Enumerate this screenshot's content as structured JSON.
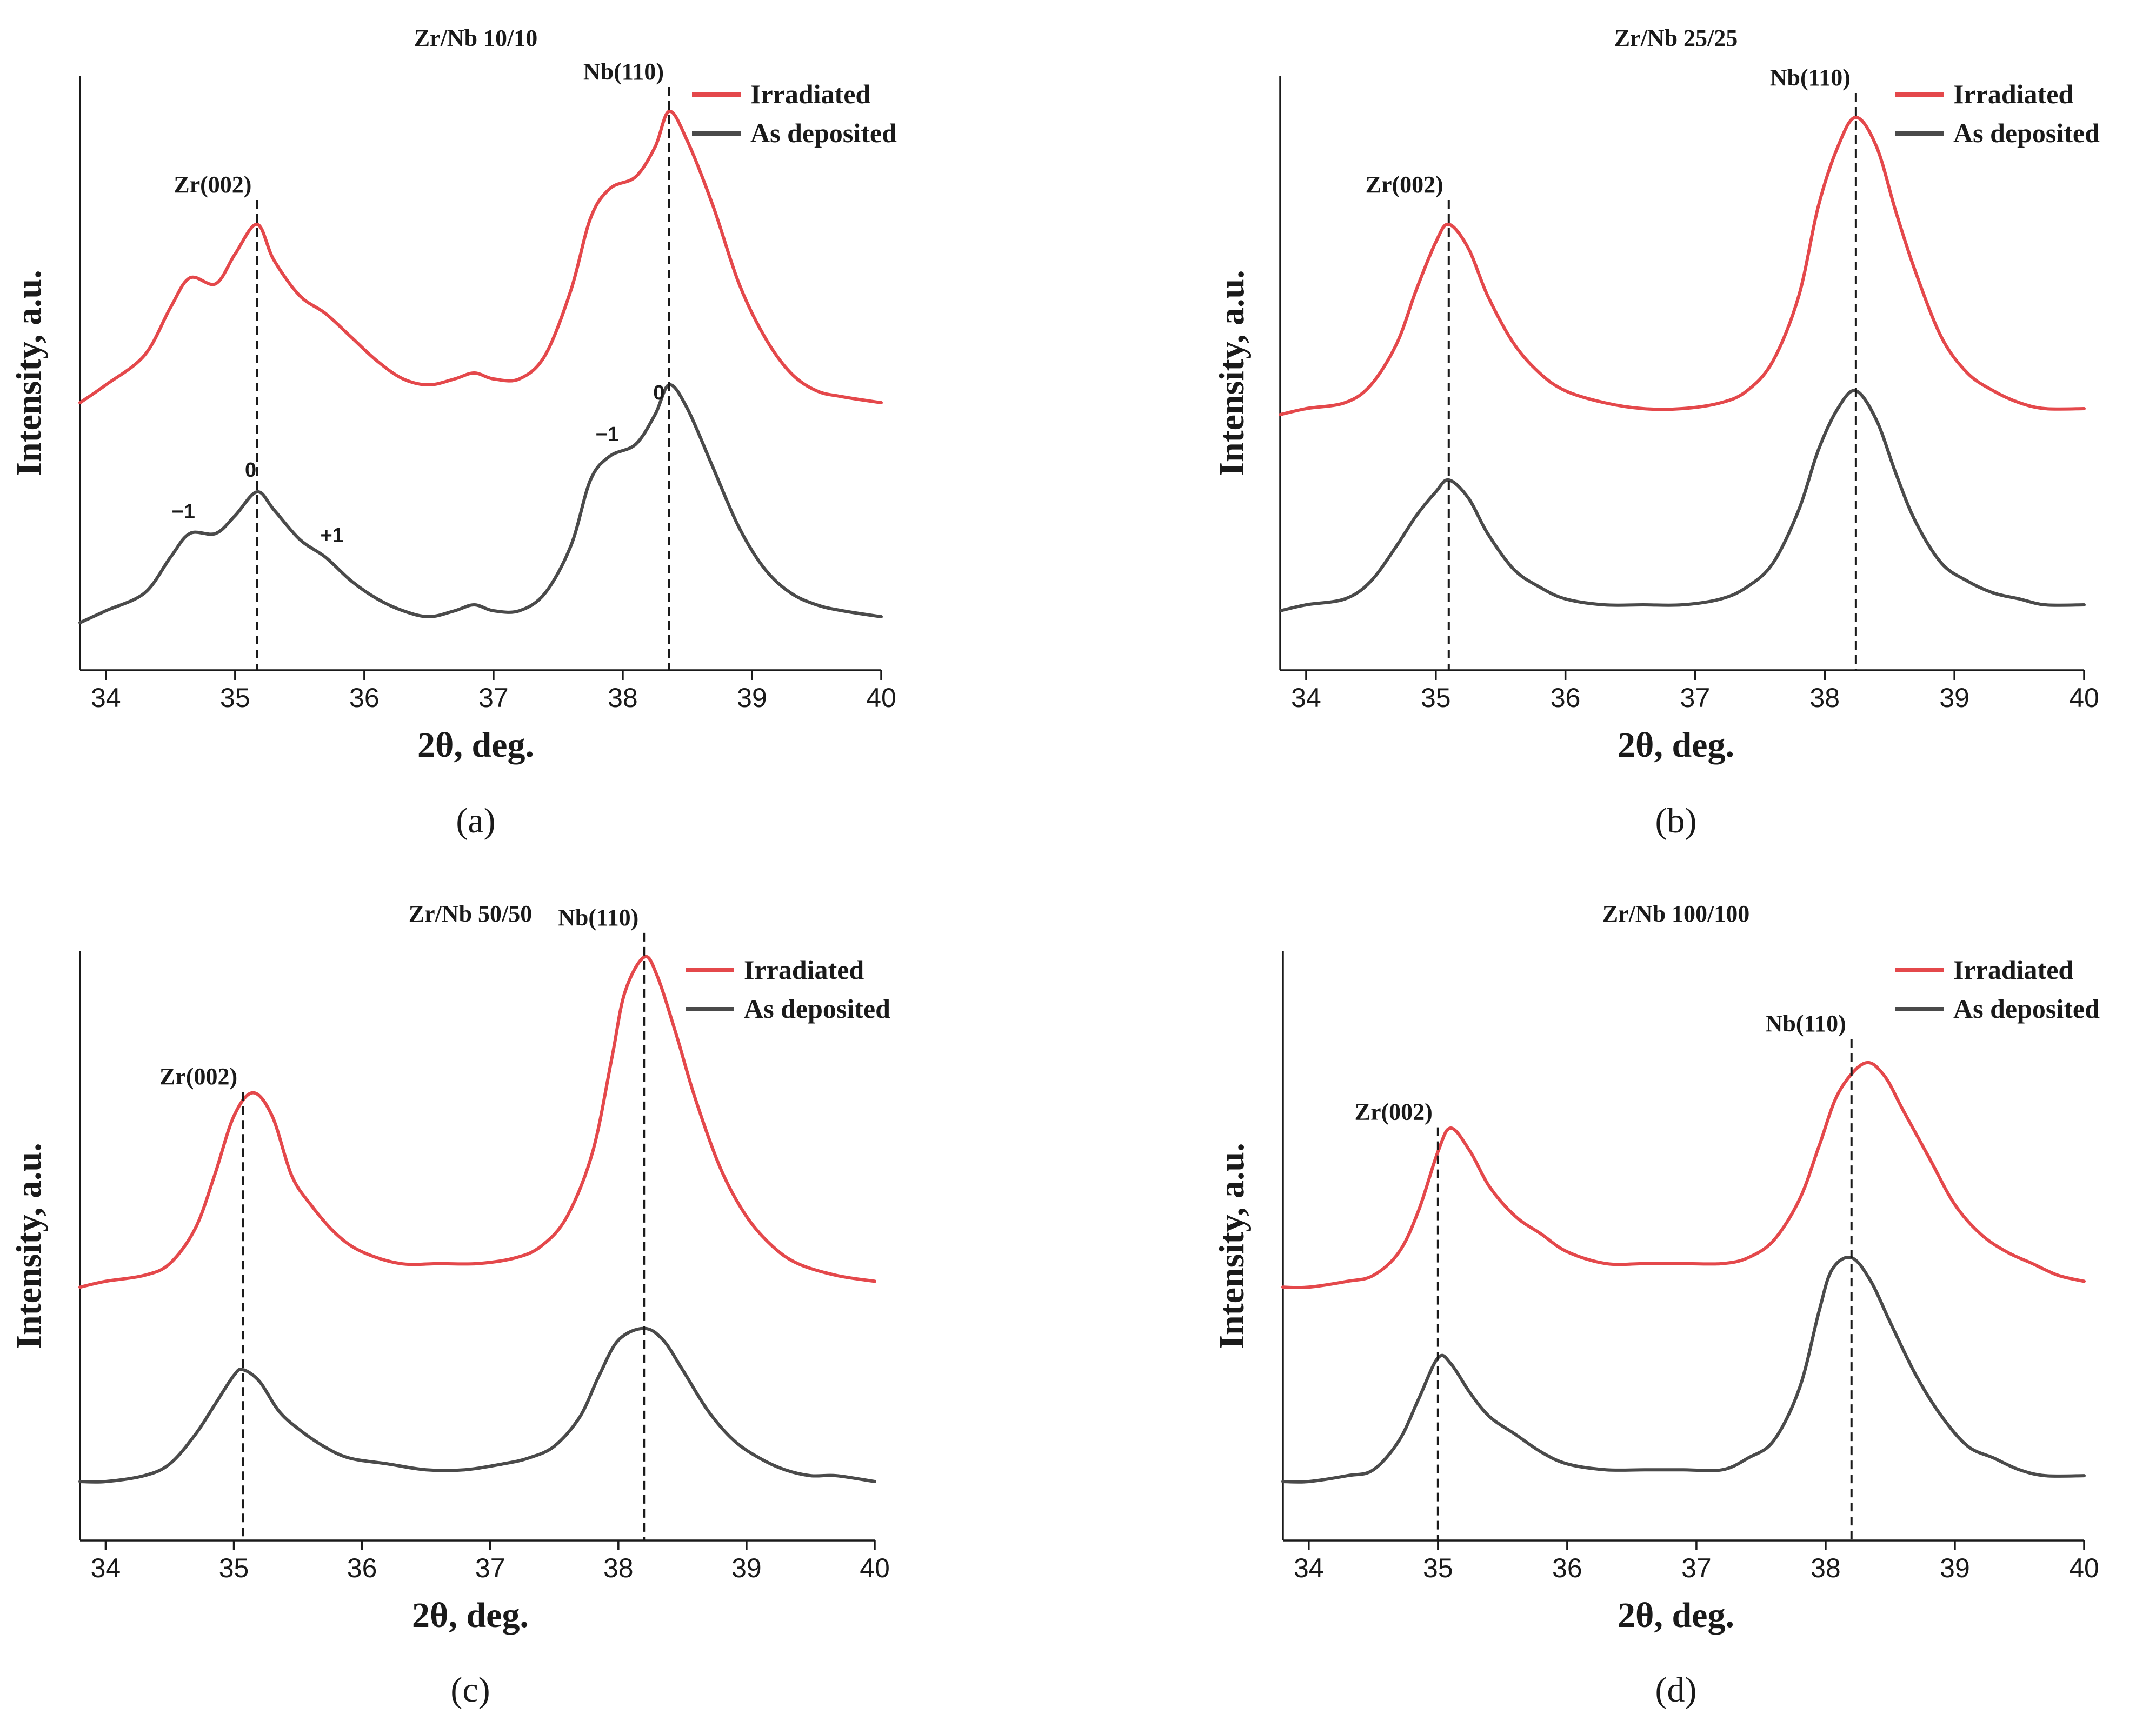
{
  "chart_data": [
    {
      "type": "line",
      "title": "Zr/Nb 10/10",
      "caption": "(a)",
      "xlabel": "2θ, deg.",
      "ylabel": "Intensity, a.u.",
      "xlim": [
        33.8,
        40
      ],
      "xticks": [
        "34",
        "35",
        "36",
        "37",
        "38",
        "39",
        "40"
      ],
      "legend": {
        "position": "top-right",
        "entries": [
          "Irradiated",
          "As deposited"
        ]
      },
      "colors": {
        "Irradiated": "#e4484b",
        "As deposited": "#4a4a4a"
      },
      "reference_lines": [
        {
          "x": 35.17,
          "label": "Zr(002)"
        },
        {
          "x": 38.36,
          "label": "Nb(110)"
        }
      ],
      "annotations": [
        {
          "text": "−1",
          "series": "As deposited",
          "x": 34.6
        },
        {
          "text": "0",
          "series": "As deposited",
          "x": 35.12
        },
        {
          "text": "+1",
          "series": "As deposited",
          "x": 35.75
        },
        {
          "text": "−1",
          "series": "As deposited",
          "x": 37.88
        },
        {
          "text": "0",
          "series": "As deposited",
          "x": 38.28
        }
      ],
      "series": [
        {
          "name": "Irradiated",
          "x": [
            33.8,
            34.0,
            34.3,
            34.5,
            34.65,
            34.85,
            35.0,
            35.17,
            35.3,
            35.5,
            35.7,
            35.9,
            36.1,
            36.3,
            36.5,
            36.7,
            36.85,
            37.0,
            37.2,
            37.4,
            37.6,
            37.75,
            37.9,
            38.1,
            38.25,
            38.36,
            38.5,
            38.7,
            38.9,
            39.1,
            39.3,
            39.5,
            39.7,
            40.0
          ],
          "y": [
            0.45,
            0.48,
            0.53,
            0.61,
            0.66,
            0.65,
            0.7,
            0.75,
            0.69,
            0.63,
            0.6,
            0.56,
            0.52,
            0.49,
            0.48,
            0.49,
            0.5,
            0.49,
            0.49,
            0.53,
            0.64,
            0.76,
            0.81,
            0.83,
            0.88,
            0.94,
            0.89,
            0.78,
            0.65,
            0.56,
            0.5,
            0.47,
            0.46,
            0.45
          ]
        },
        {
          "name": "As deposited",
          "x": [
            33.8,
            34.0,
            34.3,
            34.5,
            34.65,
            34.85,
            35.0,
            35.17,
            35.3,
            35.5,
            35.7,
            35.9,
            36.1,
            36.3,
            36.5,
            36.7,
            36.85,
            37.0,
            37.2,
            37.4,
            37.6,
            37.75,
            37.9,
            38.1,
            38.25,
            38.36,
            38.5,
            38.7,
            38.9,
            39.1,
            39.3,
            39.5,
            39.7,
            40.0
          ],
          "y": [
            0.08,
            0.1,
            0.13,
            0.19,
            0.23,
            0.23,
            0.26,
            0.3,
            0.27,
            0.22,
            0.19,
            0.15,
            0.12,
            0.1,
            0.09,
            0.1,
            0.11,
            0.1,
            0.1,
            0.13,
            0.21,
            0.32,
            0.36,
            0.38,
            0.43,
            0.48,
            0.44,
            0.34,
            0.24,
            0.17,
            0.13,
            0.11,
            0.1,
            0.09
          ]
        }
      ]
    },
    {
      "type": "line",
      "title": "Zr/Nb 25/25",
      "caption": "(b)",
      "xlabel": "2θ, deg.",
      "ylabel": "Intensity, a.u.",
      "xlim": [
        33.8,
        40
      ],
      "xticks": [
        "34",
        "35",
        "36",
        "37",
        "38",
        "39",
        "40"
      ],
      "legend": {
        "position": "top-right",
        "entries": [
          "Irradiated",
          "As deposited"
        ]
      },
      "colors": {
        "Irradiated": "#e4484b",
        "As deposited": "#4a4a4a"
      },
      "reference_lines": [
        {
          "x": 35.1,
          "label": "Zr(002)"
        },
        {
          "x": 38.24,
          "label": "Nb(110)"
        }
      ],
      "annotations": [],
      "series": [
        {
          "name": "Irradiated",
          "x": [
            33.8,
            34.0,
            34.3,
            34.5,
            34.7,
            34.85,
            35.0,
            35.1,
            35.25,
            35.4,
            35.6,
            35.8,
            36.0,
            36.3,
            36.6,
            36.9,
            37.2,
            37.4,
            37.6,
            37.8,
            37.95,
            38.1,
            38.24,
            38.4,
            38.55,
            38.7,
            38.9,
            39.1,
            39.3,
            39.5,
            39.7,
            40.0
          ],
          "y": [
            0.43,
            0.44,
            0.45,
            0.48,
            0.55,
            0.64,
            0.72,
            0.75,
            0.71,
            0.63,
            0.55,
            0.5,
            0.47,
            0.45,
            0.44,
            0.44,
            0.45,
            0.47,
            0.52,
            0.63,
            0.78,
            0.88,
            0.93,
            0.88,
            0.77,
            0.67,
            0.56,
            0.5,
            0.47,
            0.45,
            0.44,
            0.44
          ]
        },
        {
          "name": "As deposited",
          "x": [
            33.8,
            34.0,
            34.3,
            34.5,
            34.7,
            34.85,
            35.0,
            35.1,
            35.25,
            35.4,
            35.6,
            35.8,
            36.0,
            36.3,
            36.6,
            36.9,
            37.2,
            37.4,
            37.6,
            37.8,
            37.95,
            38.1,
            38.24,
            38.4,
            38.55,
            38.7,
            38.9,
            39.1,
            39.3,
            39.5,
            39.7,
            40.0
          ],
          "y": [
            0.1,
            0.11,
            0.12,
            0.15,
            0.21,
            0.26,
            0.3,
            0.32,
            0.29,
            0.23,
            0.17,
            0.14,
            0.12,
            0.11,
            0.11,
            0.11,
            0.12,
            0.14,
            0.18,
            0.27,
            0.37,
            0.44,
            0.47,
            0.42,
            0.33,
            0.25,
            0.18,
            0.15,
            0.13,
            0.12,
            0.11,
            0.11
          ]
        }
      ]
    },
    {
      "type": "line",
      "title": "Zr/Nb 50/50",
      "caption": "(c)",
      "xlabel": "2θ, deg.",
      "ylabel": "Intensity, a.u.",
      "xlim": [
        33.8,
        40
      ],
      "xticks": [
        "34",
        "35",
        "36",
        "37",
        "38",
        "39",
        "40"
      ],
      "legend": {
        "position": "top-right",
        "entries": [
          "Irradiated",
          "As deposited"
        ]
      },
      "colors": {
        "Irradiated": "#e4484b",
        "As deposited": "#4a4a4a"
      },
      "reference_lines": [
        {
          "x": 35.07,
          "label": "Zr(002)"
        },
        {
          "x": 38.2,
          "label": "Nb(110)"
        }
      ],
      "annotations": [],
      "series": [
        {
          "name": "Irradiated",
          "x": [
            33.8,
            34.0,
            34.3,
            34.5,
            34.7,
            34.85,
            35.0,
            35.15,
            35.3,
            35.45,
            35.6,
            35.8,
            36.0,
            36.3,
            36.6,
            36.9,
            37.2,
            37.4,
            37.6,
            37.8,
            37.95,
            38.05,
            38.2,
            38.3,
            38.45,
            38.6,
            38.8,
            39.0,
            39.2,
            39.4,
            39.7,
            40.0
          ],
          "y": [
            0.43,
            0.44,
            0.45,
            0.47,
            0.53,
            0.62,
            0.72,
            0.76,
            0.72,
            0.62,
            0.57,
            0.52,
            0.49,
            0.47,
            0.47,
            0.47,
            0.48,
            0.5,
            0.55,
            0.66,
            0.82,
            0.93,
            0.99,
            0.96,
            0.86,
            0.75,
            0.63,
            0.55,
            0.5,
            0.47,
            0.45,
            0.44
          ]
        },
        {
          "name": "As deposited",
          "x": [
            33.8,
            34.0,
            34.3,
            34.5,
            34.7,
            34.85,
            35.0,
            35.07,
            35.2,
            35.35,
            35.5,
            35.7,
            35.9,
            36.2,
            36.5,
            36.8,
            37.1,
            37.3,
            37.5,
            37.7,
            37.85,
            38.0,
            38.2,
            38.35,
            38.5,
            38.7,
            38.9,
            39.1,
            39.3,
            39.5,
            39.7,
            40.0
          ],
          "y": [
            0.1,
            0.1,
            0.11,
            0.13,
            0.18,
            0.23,
            0.28,
            0.29,
            0.27,
            0.22,
            0.19,
            0.16,
            0.14,
            0.13,
            0.12,
            0.12,
            0.13,
            0.14,
            0.16,
            0.21,
            0.28,
            0.34,
            0.36,
            0.34,
            0.29,
            0.22,
            0.17,
            0.14,
            0.12,
            0.11,
            0.11,
            0.1
          ]
        }
      ]
    },
    {
      "type": "line",
      "title": "Zr/Nb 100/100",
      "caption": "(d)",
      "xlabel": "2θ, deg.",
      "ylabel": "Intensity, a.u.",
      "xlim": [
        33.8,
        40
      ],
      "xticks": [
        "34",
        "35",
        "36",
        "37",
        "38",
        "39",
        "40"
      ],
      "legend": {
        "position": "top-right",
        "entries": [
          "Irradiated",
          "As deposited"
        ]
      },
      "colors": {
        "Irradiated": "#e4484b",
        "As deposited": "#4a4a4a"
      },
      "reference_lines": [
        {
          "x": 35.0,
          "label": "Zr(002)"
        },
        {
          "x": 38.2,
          "label": "Nb(110)"
        }
      ],
      "annotations": [],
      "series": [
        {
          "name": "Irradiated",
          "x": [
            33.8,
            34.0,
            34.3,
            34.5,
            34.7,
            34.85,
            35.0,
            35.1,
            35.25,
            35.4,
            35.6,
            35.8,
            36.0,
            36.3,
            36.6,
            36.9,
            37.2,
            37.4,
            37.6,
            37.8,
            37.95,
            38.1,
            38.3,
            38.45,
            38.6,
            38.8,
            39.0,
            39.2,
            39.4,
            39.6,
            39.8,
            40.0
          ],
          "y": [
            0.43,
            0.43,
            0.44,
            0.45,
            0.49,
            0.56,
            0.66,
            0.7,
            0.66,
            0.6,
            0.55,
            0.52,
            0.49,
            0.47,
            0.47,
            0.47,
            0.47,
            0.48,
            0.51,
            0.58,
            0.67,
            0.76,
            0.81,
            0.79,
            0.73,
            0.65,
            0.57,
            0.52,
            0.49,
            0.47,
            0.45,
            0.44
          ]
        },
        {
          "name": "As deposited",
          "x": [
            33.8,
            34.0,
            34.3,
            34.5,
            34.7,
            34.85,
            35.0,
            35.1,
            35.25,
            35.4,
            35.6,
            35.8,
            36.0,
            36.3,
            36.6,
            36.9,
            37.2,
            37.4,
            37.6,
            37.8,
            37.95,
            38.05,
            38.2,
            38.35,
            38.5,
            38.7,
            38.9,
            39.1,
            39.3,
            39.5,
            39.7,
            40.0
          ],
          "y": [
            0.1,
            0.1,
            0.11,
            0.12,
            0.17,
            0.24,
            0.31,
            0.3,
            0.25,
            0.21,
            0.18,
            0.15,
            0.13,
            0.12,
            0.12,
            0.12,
            0.12,
            0.14,
            0.17,
            0.26,
            0.39,
            0.46,
            0.48,
            0.44,
            0.37,
            0.28,
            0.21,
            0.16,
            0.14,
            0.12,
            0.11,
            0.11
          ]
        }
      ]
    }
  ]
}
